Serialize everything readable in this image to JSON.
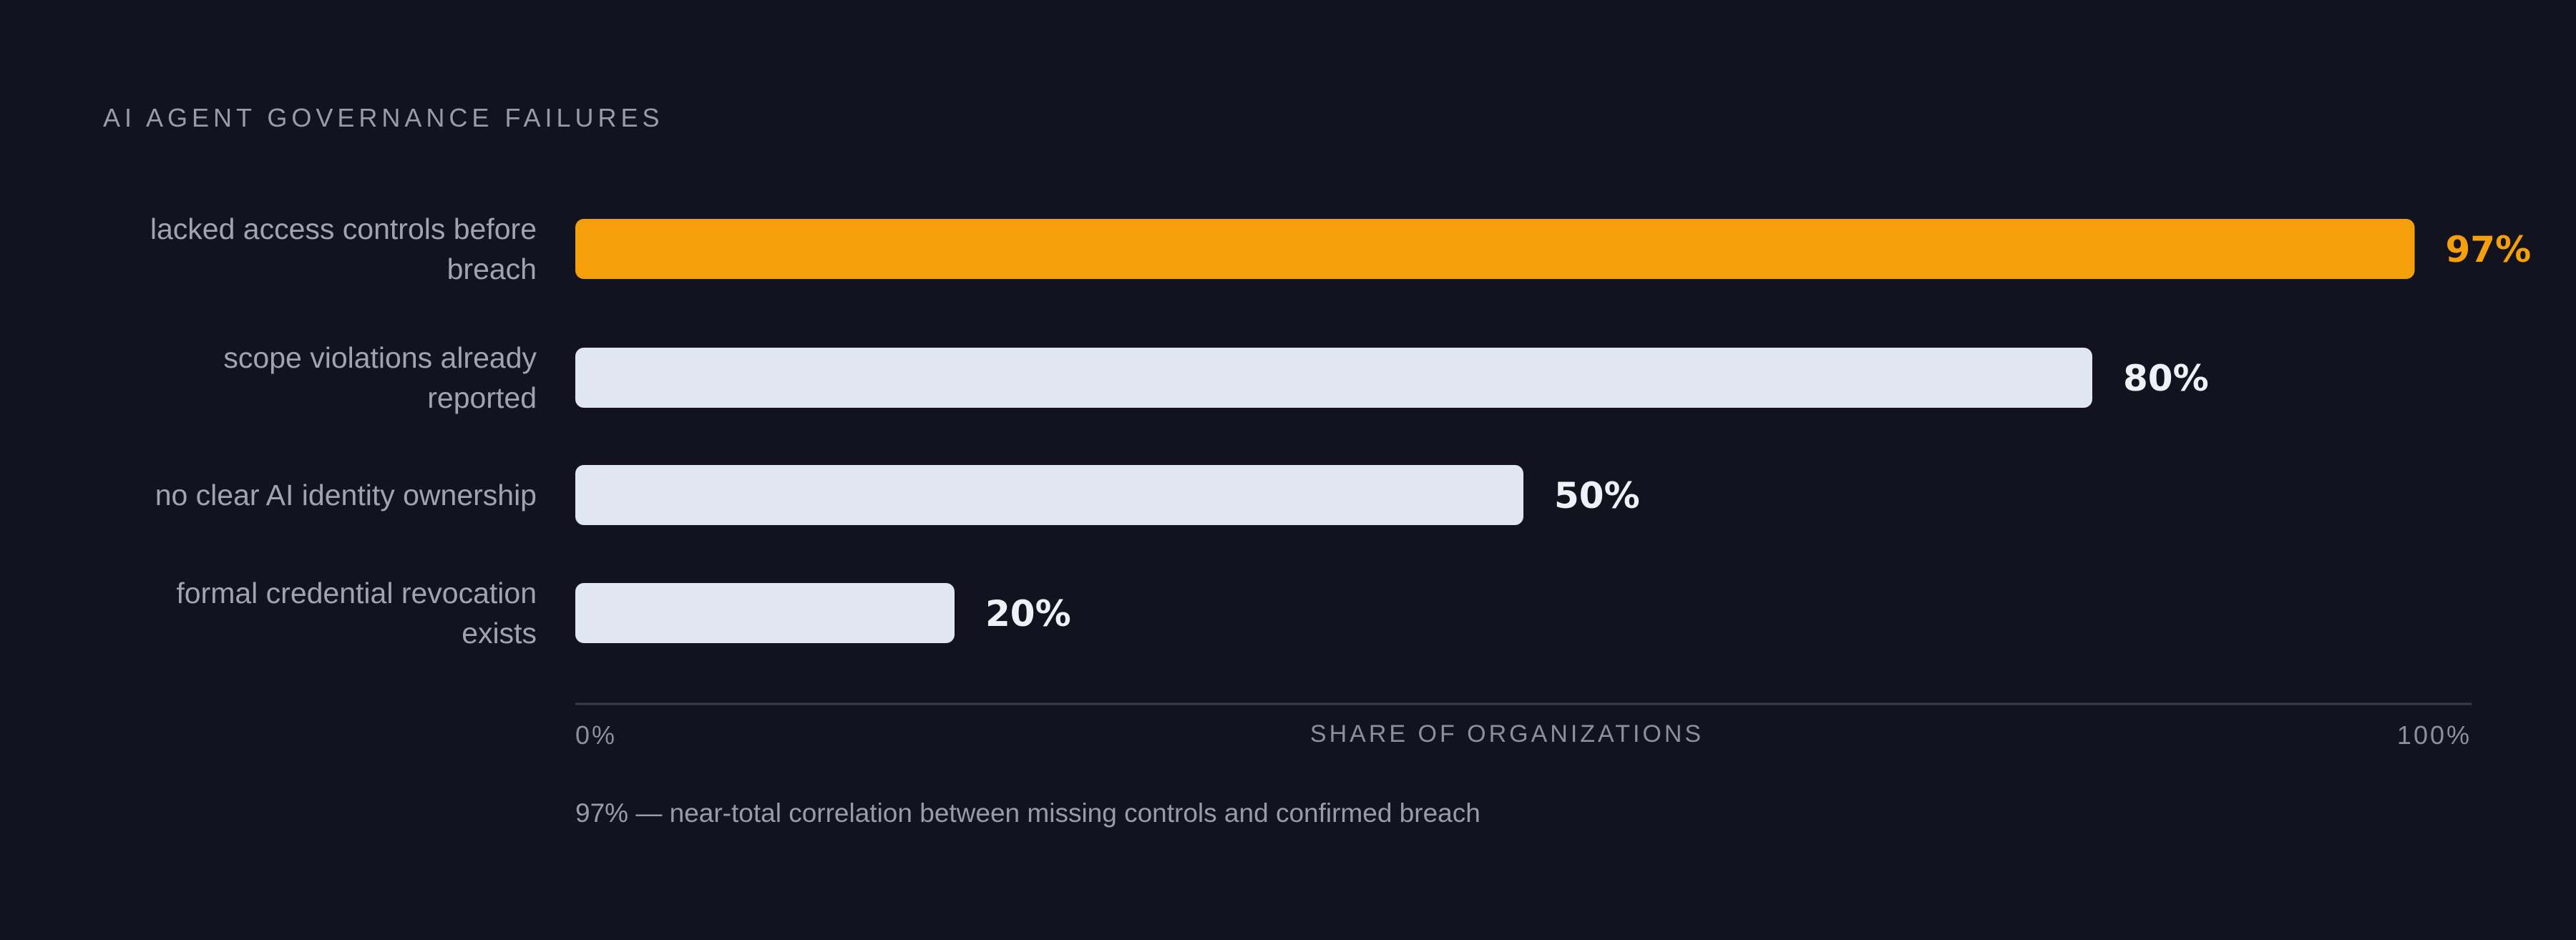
{
  "colors": {
    "background": "#13131f",
    "highlight": "#f59f0b",
    "bar": "#e1e7f0",
    "value_text": "#eef1f6",
    "axis_line": "#3a3a4a"
  },
  "chart_data": {
    "type": "bar",
    "orientation": "horizontal",
    "title": "AI AGENT GOVERNANCE FAILURES",
    "categories": [
      [
        "lacked access controls before",
        "breach"
      ],
      [
        "scope violations already",
        "reported"
      ],
      [
        "no clear AI identity ownership"
      ],
      [
        "formal credential revocation",
        "exists"
      ]
    ],
    "values": [
      97,
      80,
      50,
      20
    ],
    "value_labels": [
      "97%",
      "80%",
      "50%",
      "20%"
    ],
    "highlight_index": 0,
    "xlabel": "SHARE OF ORGANIZATIONS",
    "xlim": [
      0,
      100
    ],
    "x_tick_labels": [
      "0%",
      "100%"
    ],
    "grid": false,
    "legend": "none",
    "footnote": "97% — near-total correlation between missing controls and confirmed breach"
  }
}
